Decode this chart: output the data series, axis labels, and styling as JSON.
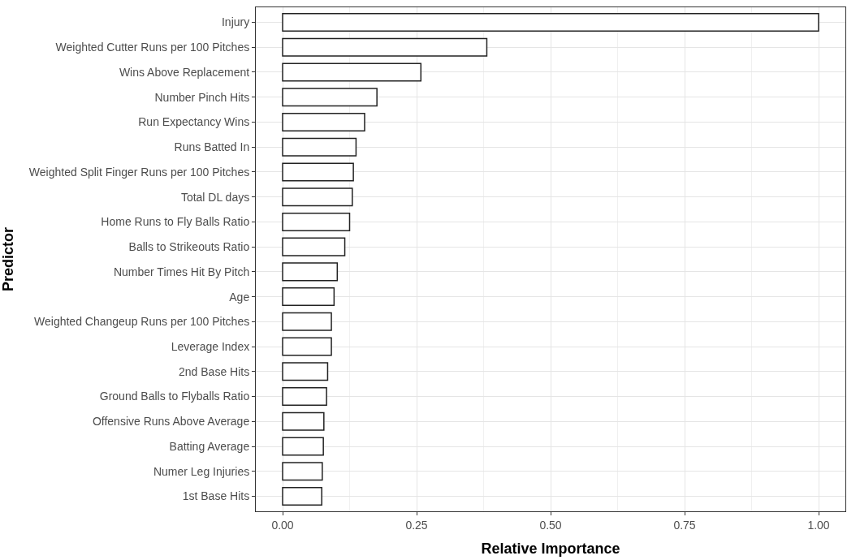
{
  "chart_data": {
    "type": "bar",
    "orientation": "horizontal",
    "xlabel": "Relative Importance",
    "ylabel": "Predictor",
    "categories": [
      "Injury",
      "Weighted Cutter Runs per 100 Pitches",
      "Wins Above Replacement",
      "Number Pinch Hits",
      "Run Expectancy Wins",
      "Runs Batted In",
      "Weighted Split Finger Runs per 100 Pitches",
      "Total DL days",
      "Home Runs to Fly Balls Ratio",
      "Balls to Strikeouts Ratio",
      "Number Times Hit By Pitch",
      "Age",
      "Weighted Changeup Runs per 100 Pitches",
      "Leverage Index",
      "2nd Base Hits",
      "Ground Balls to Flyballs Ratio",
      "Offensive Runs Above Average",
      "Batting Average",
      "Numer Leg Injuries",
      "1st Base Hits"
    ],
    "values": [
      1.0,
      0.381,
      0.258,
      0.176,
      0.153,
      0.137,
      0.132,
      0.13,
      0.125,
      0.116,
      0.102,
      0.096,
      0.091,
      0.091,
      0.084,
      0.082,
      0.077,
      0.076,
      0.074,
      0.073
    ],
    "color": "#ffffff",
    "xlim": [
      -0.05,
      1.05
    ],
    "xticks": [
      {
        "value": 0,
        "label": "0.00"
      },
      {
        "value": 0.25,
        "label": "0.25"
      },
      {
        "value": 0.5,
        "label": "0.50"
      },
      {
        "value": 0.75,
        "label": "0.75"
      },
      {
        "value": 1,
        "label": "1.00"
      }
    ],
    "grid": true,
    "legend": false
  }
}
